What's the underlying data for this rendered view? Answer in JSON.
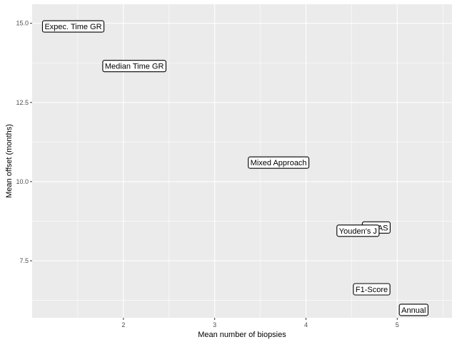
{
  "chart_data": {
    "type": "scatter",
    "title": "",
    "xlabel": "Mean number of biopsies",
    "ylabel": "Mean offset (months)",
    "xlim": [
      1.0,
      5.6
    ],
    "ylim": [
      5.7,
      15.6
    ],
    "x_ticks": [
      2,
      3,
      4,
      5
    ],
    "x_tick_labels": [
      "2",
      "3",
      "4",
      "5"
    ],
    "y_ticks": [
      7.5,
      10.0,
      12.5,
      15.0
    ],
    "y_tick_labels": [
      "7.5",
      "10.0",
      "12.5",
      "15.0"
    ],
    "grid": true,
    "panel_background": "#ebebeb",
    "grid_color": "#ffffff",
    "points": [
      {
        "label": "Expec. Time GR",
        "x": 1.45,
        "y": 14.9
      },
      {
        "label": "Median Time GR",
        "x": 2.12,
        "y": 13.65
      },
      {
        "label": "Mixed Approach",
        "x": 3.7,
        "y": 10.6
      },
      {
        "label": "PRIAS",
        "x": 4.77,
        "y": 8.55
      },
      {
        "label": "Youden's J",
        "x": 4.57,
        "y": 8.45
      },
      {
        "label": "F1-Score",
        "x": 4.72,
        "y": 6.6
      },
      {
        "label": "Annual",
        "x": 5.18,
        "y": 5.95
      }
    ]
  }
}
